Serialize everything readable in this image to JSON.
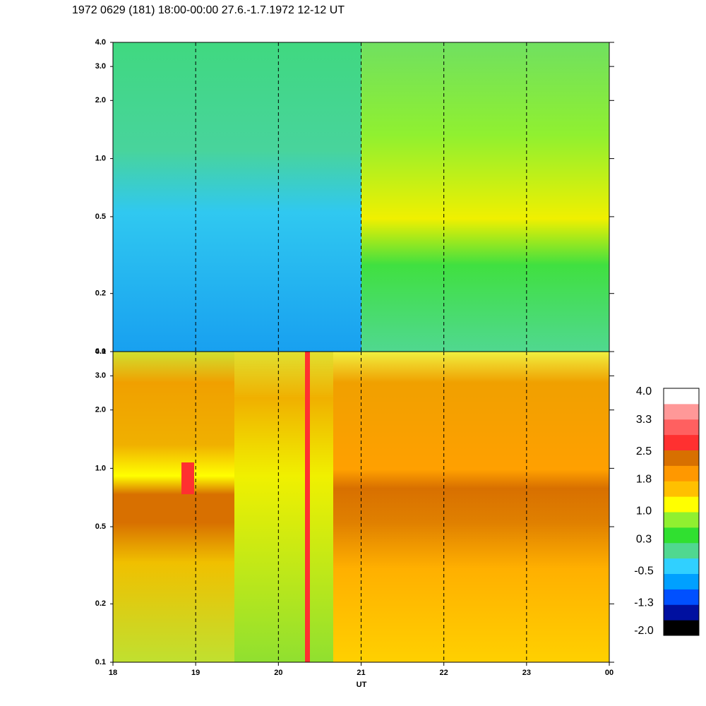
{
  "chart_data": {
    "type": "spectrogram",
    "title": "1972 0629 (181) 18:00-00:00 27.6.-1.7.1972  12-12 UT",
    "xlabel": "UT",
    "xlim": [
      18,
      24
    ],
    "xticks": [
      18,
      19,
      20,
      21,
      22,
      23,
      {
        "value": 24,
        "label": "00"
      }
    ],
    "ylim": [
      0.1,
      4.0
    ],
    "yticks": [
      0.1,
      0.2,
      0.5,
      {
        "value": 1.0,
        "label": "1.0"
      },
      {
        "value": 2.0,
        "label": "2.0"
      },
      {
        "value": 3.0,
        "label": "3.0"
      },
      {
        "value": 4.0,
        "label": "4.0"
      }
    ],
    "log_y": true,
    "grid": true,
    "colorbar": {
      "clim": [
        -2.0,
        4.0
      ],
      "colors": [
        "#000000",
        "#0010a0",
        "#0050ff",
        "#00a0ff",
        "#30d0ff",
        "#50d890",
        "#30e030",
        "#90f030",
        "#ffff00",
        "#ffc000",
        "#ff9800",
        "#d87000",
        "#ff3030",
        "#ff6060",
        "#ff9898",
        "#ffffff"
      ],
      "ticks": [
        {
          "value": 4.0,
          "label": "4.0"
        },
        3.3,
        2.5,
        1.8,
        {
          "value": 1.0,
          "label": "1.0"
        },
        0.3,
        -0.5,
        -1.3,
        {
          "value": -2.0,
          "label": "-2.0"
        }
      ]
    }
  }
}
